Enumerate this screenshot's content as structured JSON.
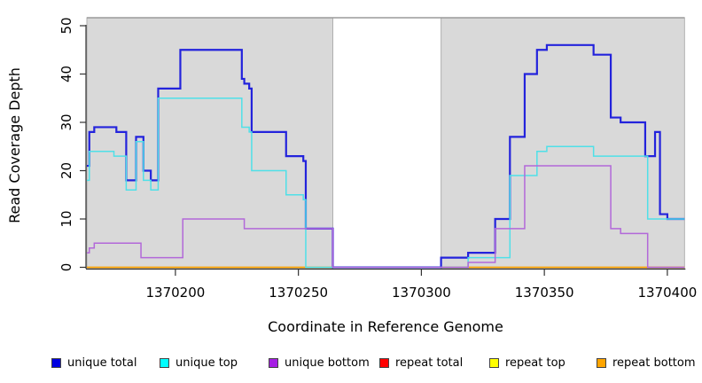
{
  "chart_data": {
    "type": "line",
    "subtype": "step-coverage",
    "xlabel": "Coordinate in Reference Genome",
    "ylabel": "Read Coverage Depth",
    "xlim": [
      1370164,
      1370407
    ],
    "ylim": [
      0,
      50
    ],
    "x_ticks": [
      1370200,
      1370250,
      1370300,
      1370350,
      1370400
    ],
    "y_ticks": [
      0,
      10,
      20,
      30,
      40,
      50
    ],
    "grid": false,
    "legend_position": "bottom",
    "plot_background": "#ffffff",
    "covered_region_fill": "#D9D9D9",
    "covered_region_border": "#B0B0B0",
    "covered_regions": [
      {
        "x0": 1370164,
        "x1": 1370264
      },
      {
        "x0": 1370308,
        "x1": 1370407
      }
    ],
    "uncovered_gap": {
      "x0": 1370264,
      "x1": 1370308
    },
    "series": [
      {
        "name": "unique total",
        "color": "#2323DC",
        "legend_color": "#0000E0",
        "width": 2.2,
        "draw_order": 4,
        "steps": [
          [
            1370164,
            21
          ],
          [
            1370165,
            28
          ],
          [
            1370167,
            29
          ],
          [
            1370176,
            28
          ],
          [
            1370180,
            18
          ],
          [
            1370184,
            27
          ],
          [
            1370187,
            20
          ],
          [
            1370190,
            18
          ],
          [
            1370193,
            37
          ],
          [
            1370202,
            45
          ],
          [
            1370227,
            39
          ],
          [
            1370228,
            38
          ],
          [
            1370230,
            37
          ],
          [
            1370231,
            28
          ],
          [
            1370245,
            23
          ],
          [
            1370252,
            22
          ],
          [
            1370253,
            8
          ],
          [
            1370264,
            0
          ],
          [
            1370308,
            2
          ],
          [
            1370319,
            3
          ],
          [
            1370330,
            10
          ],
          [
            1370336,
            27
          ],
          [
            1370342,
            40
          ],
          [
            1370347,
            45
          ],
          [
            1370351,
            46
          ],
          [
            1370370,
            44
          ],
          [
            1370377,
            31
          ],
          [
            1370381,
            30
          ],
          [
            1370391,
            23
          ],
          [
            1370395,
            28
          ],
          [
            1370397,
            11
          ],
          [
            1370400,
            10
          ]
        ]
      },
      {
        "name": "unique top",
        "color": "#4FE0E8",
        "legend_color": "#00FFFF",
        "width": 1.5,
        "draw_order": 5,
        "steps": [
          [
            1370164,
            18
          ],
          [
            1370165,
            24
          ],
          [
            1370175,
            23
          ],
          [
            1370180,
            16
          ],
          [
            1370184,
            26
          ],
          [
            1370187,
            18
          ],
          [
            1370190,
            16
          ],
          [
            1370193,
            35
          ],
          [
            1370227,
            29
          ],
          [
            1370230,
            28
          ],
          [
            1370231,
            20
          ],
          [
            1370245,
            15
          ],
          [
            1370252,
            14
          ],
          [
            1370253,
            0
          ],
          [
            1370319,
            2
          ],
          [
            1370336,
            19
          ],
          [
            1370347,
            24
          ],
          [
            1370351,
            25
          ],
          [
            1370370,
            23
          ],
          [
            1370392,
            10
          ]
        ]
      },
      {
        "name": "unique bottom",
        "color": "#B268D9",
        "legend_color": "#A61EE4",
        "width": 1.5,
        "draw_order": 6,
        "steps": [
          [
            1370164,
            3
          ],
          [
            1370165,
            4
          ],
          [
            1370167,
            5
          ],
          [
            1370186,
            2
          ],
          [
            1370203,
            10
          ],
          [
            1370228,
            8
          ],
          [
            1370264,
            0
          ],
          [
            1370319,
            1
          ],
          [
            1370330,
            8
          ],
          [
            1370342,
            21
          ],
          [
            1370377,
            8
          ],
          [
            1370381,
            7
          ],
          [
            1370392,
            0
          ]
        ]
      },
      {
        "name": "repeat total",
        "color": "#DD2222",
        "legend_color": "#FF0000",
        "width": 1.2,
        "draw_order": 1,
        "steps": [
          [
            1370164,
            0
          ]
        ]
      },
      {
        "name": "repeat top",
        "color": "#EEEE00",
        "legend_color": "#FFFF00",
        "width": 1.2,
        "draw_order": 2,
        "steps": [
          [
            1370164,
            0
          ]
        ]
      },
      {
        "name": "repeat bottom",
        "color": "#FFA500",
        "legend_color": "#FFA500",
        "width": 1.6,
        "draw_order": 3,
        "steps": [
          [
            1370164,
            0
          ]
        ]
      }
    ]
  },
  "legend_items": [
    {
      "label": "unique total"
    },
    {
      "label": "unique top"
    },
    {
      "label": "unique bottom"
    },
    {
      "label": "repeat total"
    },
    {
      "label": "repeat top"
    },
    {
      "label": "repeat bottom"
    }
  ]
}
